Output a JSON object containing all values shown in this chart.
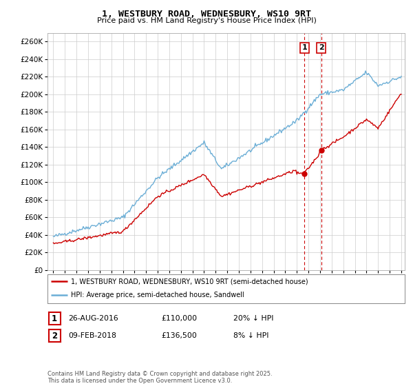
{
  "title": "1, WESTBURY ROAD, WEDNESBURY, WS10 9RT",
  "subtitle": "Price paid vs. HM Land Registry's House Price Index (HPI)",
  "legend_line1": "1, WESTBURY ROAD, WEDNESBURY, WS10 9RT (semi-detached house)",
  "legend_line2": "HPI: Average price, semi-detached house, Sandwell",
  "annotation1_label": "1",
  "annotation1_date": "26-AUG-2016",
  "annotation1_price": "£110,000",
  "annotation1_hpi": "20% ↓ HPI",
  "annotation2_label": "2",
  "annotation2_date": "09-FEB-2018",
  "annotation2_price": "£136,500",
  "annotation2_hpi": "8% ↓ HPI",
  "footnote": "Contains HM Land Registry data © Crown copyright and database right 2025.\nThis data is licensed under the Open Government Licence v3.0.",
  "hpi_color": "#6baed6",
  "price_color": "#cc0000",
  "vline_color": "#cc0000",
  "marker_color": "#cc0000",
  "background_color": "#ffffff",
  "plot_bg_color": "#ffffff",
  "grid_color": "#cccccc",
  "ylim_min": 0,
  "ylim_max": 270000,
  "ytick_step": 20000,
  "xstart_year": 1995,
  "xend_year": 2025,
  "sale1_year": 2016.65,
  "sale1_price": 110000,
  "sale2_year": 2018.1,
  "sale2_price": 136500
}
